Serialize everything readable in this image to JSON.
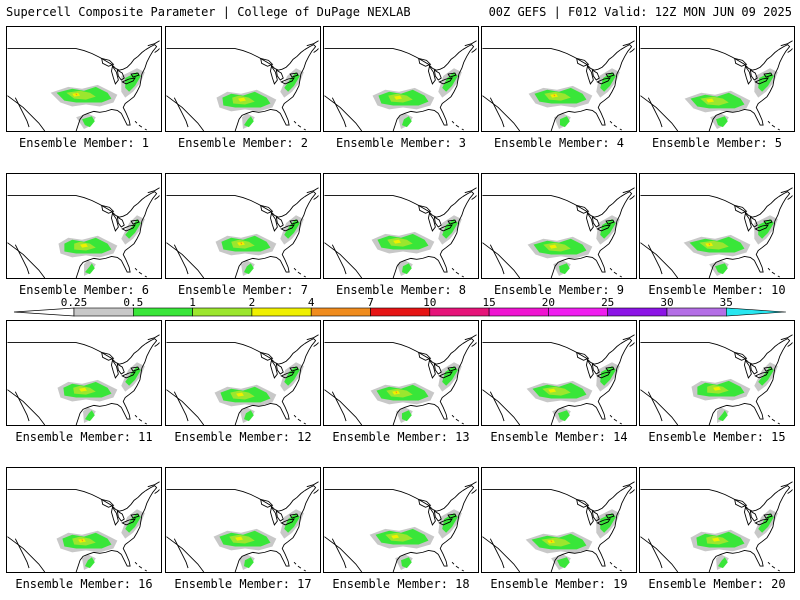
{
  "header": {
    "title": "Supercell Composite Parameter | College of DuPage NEXLAB",
    "run_info": "00Z GEFS | F012 Valid: 12Z MON JUN 09 2025"
  },
  "label_prefix": "Ensemble Member:",
  "members": [
    {
      "id": 1,
      "label": "Ensemble Member: 1"
    },
    {
      "id": 2,
      "label": "Ensemble Member: 2"
    },
    {
      "id": 3,
      "label": "Ensemble Member: 3"
    },
    {
      "id": 4,
      "label": "Ensemble Member: 4"
    },
    {
      "id": 5,
      "label": "Ensemble Member: 5"
    },
    {
      "id": 6,
      "label": "Ensemble Member: 6"
    },
    {
      "id": 7,
      "label": "Ensemble Member: 7"
    },
    {
      "id": 8,
      "label": "Ensemble Member: 8"
    },
    {
      "id": 9,
      "label": "Ensemble Member: 9"
    },
    {
      "id": 10,
      "label": "Ensemble Member: 10"
    },
    {
      "id": 11,
      "label": "Ensemble Member: 11"
    },
    {
      "id": 12,
      "label": "Ensemble Member: 12"
    },
    {
      "id": 13,
      "label": "Ensemble Member: 13"
    },
    {
      "id": 14,
      "label": "Ensemble Member: 14"
    },
    {
      "id": 15,
      "label": "Ensemble Member: 15"
    },
    {
      "id": 16,
      "label": "Ensemble Member: 16"
    },
    {
      "id": 17,
      "label": "Ensemble Member: 17"
    },
    {
      "id": 18,
      "label": "Ensemble Member: 18"
    },
    {
      "id": 19,
      "label": "Ensemble Member: 19"
    },
    {
      "id": 20,
      "label": "Ensemble Member: 20"
    }
  ],
  "colorbar": {
    "ticks": [
      "0.25",
      "0.5",
      "1",
      "2",
      "4",
      "7",
      "10",
      "15",
      "20",
      "25",
      "30",
      "35"
    ],
    "colors": [
      "#c8c8c8",
      "#39e639",
      "#9ce62e",
      "#f0f000",
      "#f08c1e",
      "#e61414",
      "#e6147a",
      "#f014d2",
      "#f01ef0",
      "#8c14e6",
      "#b46ee6",
      "#28e6f0"
    ]
  },
  "map_colors": {
    "light": "#c8c8c8",
    "green": "#39e639",
    "lime": "#9ce62e",
    "yellow": "#f0f000",
    "orange": "#f08c1e",
    "outline": "#000000"
  }
}
